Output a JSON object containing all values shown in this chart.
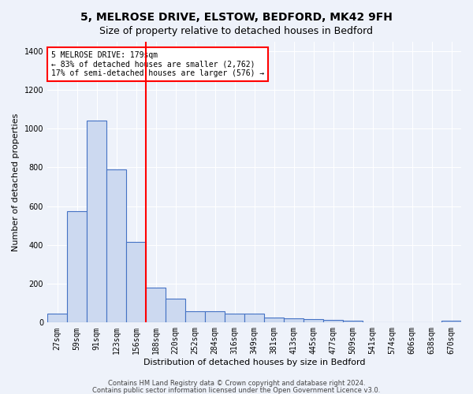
{
  "title": "5, MELROSE DRIVE, ELSTOW, BEDFORD, MK42 9FH",
  "subtitle": "Size of property relative to detached houses in Bedford",
  "xlabel": "Distribution of detached houses by size in Bedford",
  "ylabel": "Number of detached properties",
  "categories": [
    "27sqm",
    "59sqm",
    "91sqm",
    "123sqm",
    "156sqm",
    "188sqm",
    "220sqm",
    "252sqm",
    "284sqm",
    "316sqm",
    "349sqm",
    "381sqm",
    "413sqm",
    "445sqm",
    "477sqm",
    "509sqm",
    "541sqm",
    "574sqm",
    "606sqm",
    "638sqm",
    "670sqm"
  ],
  "values": [
    47,
    573,
    1040,
    790,
    415,
    180,
    125,
    60,
    60,
    47,
    47,
    25,
    22,
    18,
    12,
    8,
    0,
    0,
    0,
    0,
    10
  ],
  "bar_color": "#ccd9f0",
  "bar_edge_color": "#4472c4",
  "background_color": "#eef2fa",
  "property_line_x": 4.5,
  "annotation_text": "5 MELROSE DRIVE: 179sqm\n← 83% of detached houses are smaller (2,762)\n17% of semi-detached houses are larger (576) →",
  "annotation_box_color": "white",
  "annotation_box_edge": "red",
  "red_line_color": "red",
  "ylim": [
    0,
    1450
  ],
  "yticks": [
    0,
    200,
    400,
    600,
    800,
    1000,
    1200,
    1400
  ],
  "footer_line1": "Contains HM Land Registry data © Crown copyright and database right 2024.",
  "footer_line2": "Contains public sector information licensed under the Open Government Licence v3.0.",
  "title_fontsize": 10,
  "subtitle_fontsize": 9,
  "axis_label_fontsize": 8,
  "tick_fontsize": 7,
  "annotation_fontsize": 7
}
